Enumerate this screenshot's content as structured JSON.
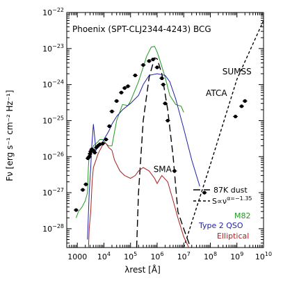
{
  "chart_data": {
    "type": "line",
    "title": "Phoenix (SPT-CLJ2344-4243) BCG",
    "xlabel": "λrest [Å]",
    "ylabel": "Fν [erg s⁻¹ cm⁻² Hz⁻¹]",
    "xscale": "log",
    "yscale": "log",
    "xlim": [
      400,
      10000000000
    ],
    "ylim": [
      1e-22,
      3e-29
    ],
    "x_ticks": [
      {
        "value": 1000,
        "mant": "1000",
        "exp": ""
      },
      {
        "value": 10000,
        "mant": "10",
        "exp": "4"
      },
      {
        "value": 100000,
        "mant": "10",
        "exp": "5"
      },
      {
        "value": 1000000,
        "mant": "10",
        "exp": "6"
      },
      {
        "value": 10000000,
        "mant": "10",
        "exp": "7"
      },
      {
        "value": 100000000,
        "mant": "10",
        "exp": "8"
      },
      {
        "value": 1000000000,
        "mant": "10",
        "exp": "9"
      },
      {
        "value": 10000000000,
        "mant": "10",
        "exp": "10"
      }
    ],
    "y_ticks": [
      {
        "value": 1e-22,
        "mant": "10",
        "exp": "−22"
      },
      {
        "value": 1e-23,
        "mant": "10",
        "exp": "−23"
      },
      {
        "value": 1e-24,
        "mant": "10",
        "exp": "−24"
      },
      {
        "value": 1e-25,
        "mant": "10",
        "exp": "−25"
      },
      {
        "value": 1e-26,
        "mant": "10",
        "exp": "−26"
      },
      {
        "value": 1e-27,
        "mant": "10",
        "exp": "−27"
      },
      {
        "value": 1e-28,
        "mant": "10",
        "exp": "−28"
      }
    ],
    "series": [
      {
        "name": "87K dust",
        "color": "#000000",
        "dash": "long",
        "x": [
          170000,
          200000,
          300000,
          500000,
          800000,
          1000000,
          1500000,
          2500000,
          4000000,
          6000000,
          10000000,
          18000000
        ],
        "y": [
          3e-29,
          1e-27,
          1e-25,
          1.6e-24,
          5.5e-24,
          5.2e-24,
          2e-24,
          2e-25,
          1e-26,
          3e-28,
          1e-28,
          3e-29
        ]
      },
      {
        "name": "S∝ν^α=−1.35",
        "color": "#000000",
        "dash": "short",
        "x": [
          10000000,
          100000000,
          1000000000,
          10000000000
        ],
        "y": [
          3e-29,
          6e-27,
          1.4e-24,
          6e-23
        ]
      },
      {
        "name": "M82",
        "color": "#1f9a1f",
        "dash": "solid",
        "x": [
          900,
          1100,
          1500,
          2000,
          2400,
          2600,
          2800,
          3000,
          3500,
          4000,
          5000,
          6000,
          7000,
          9000,
          12000,
          15000,
          20000,
          30000,
          50000,
          80000,
          100000,
          200000,
          400000,
          600000,
          800000,
          1000000,
          1300000,
          2000000,
          3000000,
          5000000,
          8000000,
          10000000
        ],
        "y": [
          2e-28,
          3e-28,
          4e-28,
          6e-28,
          1e-27,
          5e-27,
          1.2e-26,
          1e-26,
          1.3e-26,
          2e-26,
          2.3e-26,
          2.6e-26,
          3e-26,
          3e-26,
          2.3e-26,
          2e-26,
          2e-26,
          1e-25,
          2.8e-25,
          2.6e-25,
          3.5e-25,
          1.2e-24,
          6e-24,
          1.1e-23,
          1.15e-23,
          8e-24,
          4.5e-24,
          1.6e-24,
          5e-25,
          2.8e-25,
          2.5e-25,
          1.7e-25
        ]
      },
      {
        "name": "Type 2 QSO",
        "color": "#1f1fa8",
        "dash": "solid",
        "x": [
          2400,
          2800,
          3200,
          3500,
          4000,
          5000,
          6000,
          8000,
          10000,
          15000,
          20000,
          30000,
          50000,
          100000,
          200000,
          300000,
          500000,
          1000000,
          2000000,
          3000000,
          5000000,
          10000000,
          20000000,
          40000000
        ],
        "y": [
          5e-29,
          1e-27,
          5e-27,
          2e-26,
          8e-26,
          1.5e-26,
          2e-26,
          2.2e-26,
          3e-26,
          5e-26,
          8e-26,
          1.3e-25,
          2e-25,
          3e-25,
          5e-25,
          1e-24,
          1.8e-24,
          2e-24,
          1.8e-24,
          1.2e-24,
          4e-25,
          6e-26,
          8e-27,
          1.5e-27
        ]
      },
      {
        "name": "Elliptical",
        "color": "#a81f1f",
        "dash": "solid",
        "x": [
          2500,
          2800,
          3200,
          3600,
          4000,
          5000,
          6000,
          8000,
          10000,
          12000,
          15000,
          20000,
          25000,
          40000,
          60000,
          100000,
          150000,
          200000,
          300000,
          500000,
          800000,
          1000000,
          1500000,
          2500000,
          4000000,
          6000000,
          10000000,
          20000000
        ],
        "y": [
          1e-29,
          1e-28,
          3e-28,
          2e-27,
          5e-27,
          8e-27,
          1.2e-26,
          1.8e-26,
          2.5e-26,
          2.3e-26,
          1.8e-26,
          1.5e-26,
          8e-27,
          4e-27,
          3e-27,
          2.5e-27,
          3e-27,
          4e-27,
          5e-27,
          4e-27,
          2.5e-27,
          1.8e-27,
          3e-27,
          2e-27,
          6e-28,
          2e-28,
          6e-29,
          2e-29
        ]
      }
    ],
    "points": {
      "color": "#000000",
      "x": [
        900,
        1600,
        2100,
        2500,
        2800,
        3000,
        3200,
        3500,
        4000,
        4500,
        5200,
        6000,
        7000,
        9000,
        12000,
        16000,
        20000,
        30000,
        45000,
        60000,
        80000,
        150000,
        300000,
        500000,
        700000,
        1000000,
        1500000,
        1700000,
        2000000,
        2500000,
        4500000,
        60000000,
        880000000,
        1500000000,
        2000000000
      ],
      "y": [
        3.3e-28,
        1.2e-27,
        1.7e-27,
        9e-27,
        1e-26,
        1.2e-26,
        1.4e-26,
        1.6e-26,
        1.5e-26,
        1.3e-26,
        1.8e-26,
        2e-26,
        2.2e-26,
        2.3e-26,
        3e-26,
        7e-26,
        1.8e-25,
        3.5e-25,
        6e-25,
        8e-25,
        9e-25,
        1.8e-24,
        3.5e-24,
        4.5e-24,
        5e-24,
        3e-24,
        1.5e-24,
        1e-24,
        3e-25,
        1e-25,
        4e-27,
        1e-27,
        1.3e-25,
        2.5e-25,
        3.5e-25
      ]
    },
    "annotations": [
      {
        "text": "SUMSS",
        "x": 1000000000,
        "y": 1.9e-24
      },
      {
        "text": "ATCA",
        "x": 170000000,
        "y": 4.8e-25
      },
      {
        "text": "SMA",
        "x": 1600000,
        "y": 3.7e-27
      }
    ],
    "legend": {
      "placement": "bottom-right",
      "dust_label": "87K dust",
      "power_law_prefix": "S∝ν",
      "power_law_exponent": "α=−1.35",
      "m82": "M82",
      "qso": "Type 2 QSO",
      "elliptical": "Elliptical"
    },
    "grid": false
  }
}
